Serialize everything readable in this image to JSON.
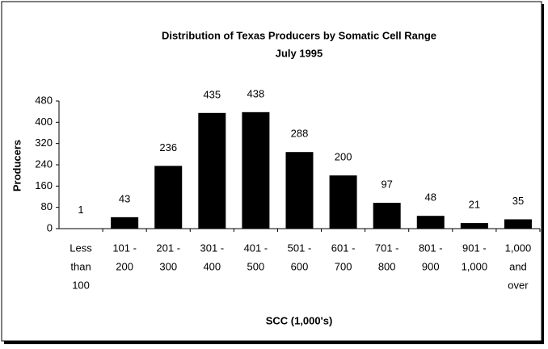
{
  "chart_data": {
    "type": "bar",
    "title": "Distribution of Texas Producers by Somatic Cell Range",
    "subtitle": "July 1995",
    "xlabel": "SCC  (1,000's)",
    "ylabel": "Producers",
    "categories": [
      [
        "Less",
        "than",
        "100"
      ],
      [
        "101 -",
        "200"
      ],
      [
        "201 -",
        "300"
      ],
      [
        "301 -",
        "400"
      ],
      [
        "401 -",
        "500"
      ],
      [
        "501 -",
        "600"
      ],
      [
        "601 -",
        "700"
      ],
      [
        "701 -",
        "800"
      ],
      [
        "801 -",
        "900"
      ],
      [
        "901 -",
        "1,000"
      ],
      [
        "1,000",
        "and",
        "over"
      ]
    ],
    "values": [
      1,
      43,
      236,
      435,
      438,
      288,
      200,
      97,
      48,
      21,
      35
    ],
    "color": "#000000",
    "ylim": [
      0,
      480
    ],
    "yticks": [
      0,
      80,
      160,
      240,
      320,
      400,
      480
    ],
    "grid": false
  }
}
